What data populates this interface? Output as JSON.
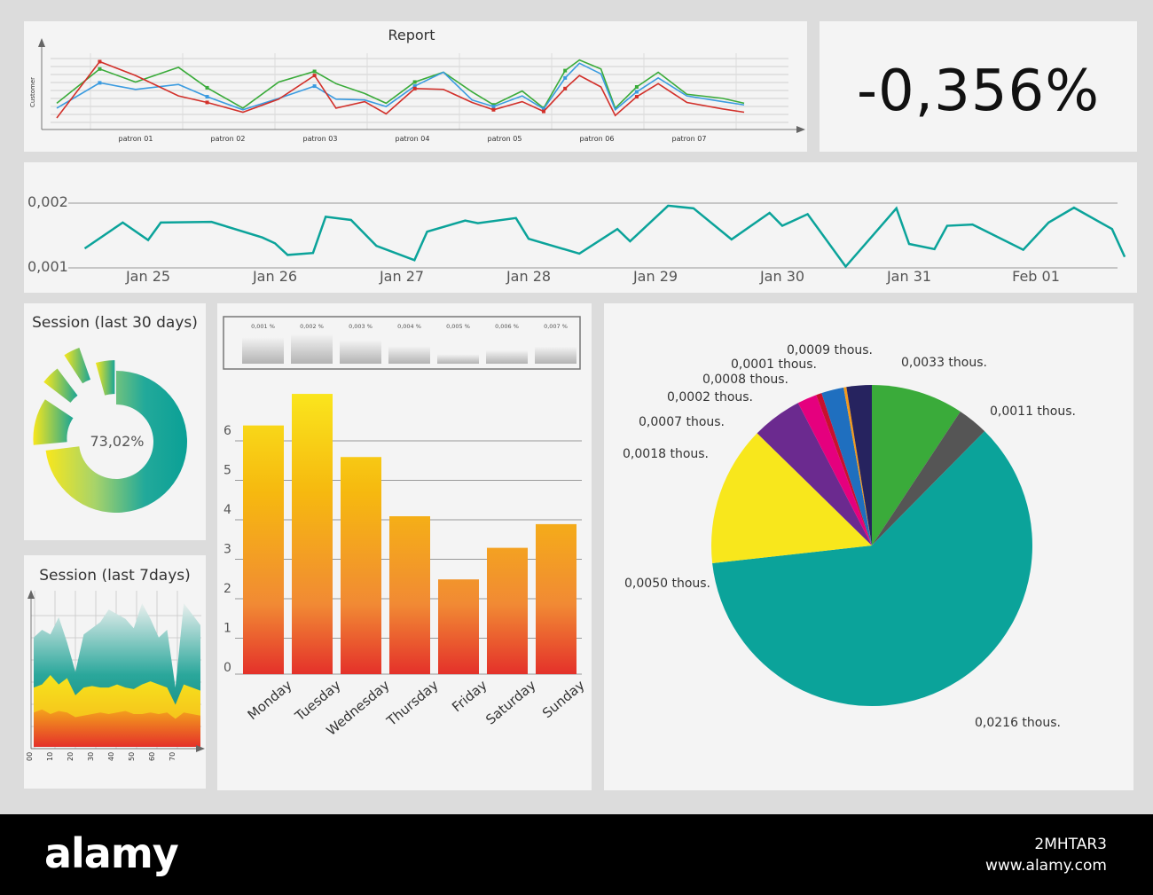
{
  "report": {
    "title": "Report",
    "ylabel": "Customer",
    "xlabels": [
      "patron 01",
      "patron 02",
      "patron 03",
      "patron 04",
      "patron 05",
      "patron 06",
      "patron 07"
    ]
  },
  "kpi": {
    "value": "-0,356%"
  },
  "timeline": {
    "ytick_top": "0,002",
    "ytick_bottom": "0,001",
    "xlabels": [
      "Jan 25",
      "Jan 26",
      "Jan 27",
      "Jan 28",
      "Jan 29",
      "Jan 30",
      "Jan 31",
      "Feb 01"
    ]
  },
  "donut": {
    "title": "Session (last 30 days)",
    "center_label": "73,02%"
  },
  "area": {
    "title": "Session (last 7days)",
    "xticks": [
      "00",
      "10",
      "20",
      "30",
      "40",
      "50",
      "60",
      "70"
    ]
  },
  "mini_bars": {
    "labels": [
      "0,001 %",
      "0,002 %",
      "0,003 %",
      "0,004 %",
      "0,005 %",
      "0,006 %",
      "0,007 %"
    ]
  },
  "bar_yticks": [
    "0",
    "1",
    "2",
    "3",
    "4",
    "5",
    "6"
  ],
  "pie_labels": [
    "0,0033 thous.",
    "0,0011 thous.",
    "0,0216 thous.",
    "0,0050 thous.",
    "0,0018 thous.",
    "0,0007 thous.",
    "0,0002 thous.",
    "0,0008 thous.",
    "0,0001 thous.",
    "0,0009 thous."
  ],
  "watermark": {
    "brand": "alamy",
    "code": "2MHTAR3",
    "url": "www.alamy.com"
  },
  "colors": {
    "teal": "#0ba39a",
    "green": "#3aab3a",
    "blue": "#3a9be0",
    "red": "#d2302a",
    "yellow": "#f8e71c"
  },
  "chart_data": [
    {
      "type": "line",
      "title": "Report",
      "ylabel": "Customer",
      "categories": [
        "patron 01",
        "patron 02",
        "patron 03",
        "patron 04",
        "patron 05",
        "patron 06",
        "patron 07"
      ],
      "x": [
        0,
        0.6,
        1.1,
        1.7,
        2.1,
        2.6,
        3.1,
        3.6,
        3.9,
        4.3,
        4.6,
        5.0,
        5.4,
        5.8,
        6.1,
        6.5,
        6.8,
        7.1,
        7.3,
        7.6,
        7.8,
        8.1,
        8.4,
        8.8,
        9.3,
        9.6
      ],
      "series": [
        {
          "values": [
            3.0,
            7.2,
            5.6,
            7.4,
            4.9,
            2.4,
            5.6,
            6.9,
            5.4,
            4.2,
            3.0,
            5.6,
            6.8,
            4.4,
            2.8,
            4.5,
            2.4,
            7.0,
            8.3,
            7.2,
            2.4,
            5.0,
            6.8,
            4.1,
            3.6,
            3.0
          ]
        },
        {
          "values": [
            2.4,
            5.5,
            4.7,
            5.3,
            3.8,
            2.2,
            3.6,
            5.1,
            3.5,
            3.4,
            2.6,
            5.1,
            6.8,
            3.4,
            2.6,
            3.9,
            2.3,
            6.1,
            7.9,
            6.6,
            2.2,
            4.4,
            6.1,
            3.9,
            3.2,
            2.8
          ]
        },
        {
          "values": [
            1.2,
            8.1,
            6.4,
            3.9,
            3.1,
            1.9,
            3.5,
            6.4,
            2.4,
            3.2,
            1.7,
            4.8,
            4.7,
            3.1,
            2.2,
            3.2,
            2.0,
            4.8,
            6.4,
            5.0,
            1.5,
            3.8,
            5.4,
            3.1,
            2.3,
            1.9
          ]
        }
      ],
      "ylim": [
        0,
        10
      ]
    },
    {
      "type": "line",
      "categories": [
        "Jan 25",
        "Jan 26",
        "Jan 27",
        "Jan 28",
        "Jan 29",
        "Jan 30",
        "Jan 31",
        "Feb 01"
      ],
      "x": [
        24.5,
        24.8,
        25.0,
        25.1,
        25.5,
        25.9,
        26.0,
        26.1,
        26.3,
        26.4,
        26.6,
        26.8,
        27.1,
        27.2,
        27.5,
        27.6,
        27.9,
        28.0,
        28.4,
        28.7,
        28.8,
        29.1,
        29.3,
        29.6,
        29.9,
        30.0,
        30.2,
        30.5,
        30.9,
        31.0,
        31.2,
        31.3,
        31.5,
        31.9,
        32.1,
        32.3,
        32.6,
        32.7
      ],
      "y": [
        1.3,
        1.7,
        1.43,
        1.7,
        1.71,
        1.47,
        1.38,
        1.2,
        1.23,
        1.79,
        1.74,
        1.34,
        1.12,
        1.56,
        1.73,
        1.69,
        1.77,
        1.45,
        1.22,
        1.6,
        1.41,
        1.96,
        1.92,
        1.44,
        1.85,
        1.65,
        1.83,
        1.02,
        1.92,
        1.37,
        1.29,
        1.65,
        1.67,
        1.28,
        1.7,
        1.93,
        1.6,
        1.17
      ],
      "yticks": [
        "0,002",
        "0,001"
      ]
    },
    {
      "type": "pie",
      "title": "Session (last 30 days)",
      "center_label": "73,02%",
      "values": [
        73.02,
        26.98
      ]
    },
    {
      "type": "area",
      "title": "Session (last 7days)",
      "xticks": [
        "00",
        "10",
        "20",
        "30",
        "40",
        "50",
        "60",
        "70"
      ],
      "x": [
        0,
        4,
        8,
        12,
        16,
        20,
        24,
        28,
        32,
        36,
        40,
        44,
        48,
        52,
        56,
        60,
        64,
        68,
        72,
        76,
        80
      ],
      "series": [
        {
          "name": "teal",
          "values": [
            70,
            75,
            72,
            83,
            67,
            48,
            72,
            76,
            80,
            88,
            85,
            82,
            76,
            92,
            82,
            70,
            75,
            38,
            92,
            85,
            78
          ]
        },
        {
          "name": "yellow",
          "values": [
            38,
            40,
            46,
            40,
            44,
            33,
            38,
            39,
            38,
            38,
            40,
            38,
            37,
            40,
            42,
            40,
            38,
            27,
            40,
            38,
            36
          ]
        },
        {
          "name": "red",
          "values": [
            22,
            24,
            21,
            23,
            22,
            19,
            20,
            21,
            22,
            21,
            22,
            23,
            21,
            21,
            22,
            21,
            22,
            18,
            22,
            21,
            20
          ]
        }
      ],
      "ylim": [
        0,
        100
      ]
    },
    {
      "type": "bar",
      "categories": [
        "0,001 %",
        "0,002 %",
        "0,003 %",
        "0,004 %",
        "0,005 %",
        "0,006 %",
        "0,007 %"
      ],
      "values": [
        6.5,
        7.3,
        5.8,
        4.3,
        2.3,
        3.3,
        4.2
      ],
      "ylim": [
        0,
        10
      ]
    },
    {
      "type": "bar",
      "categories": [
        "Monday",
        "Tuesday",
        "Wednesday",
        "Thursday",
        "Friday",
        "Saturday",
        "Sunday"
      ],
      "values": [
        6.3,
        7.1,
        5.5,
        4.0,
        2.4,
        3.2,
        3.8
      ],
      "ylim": [
        0,
        7
      ],
      "yticks": [
        "0",
        "1",
        "2",
        "3",
        "4",
        "5",
        "6"
      ]
    },
    {
      "type": "pie",
      "slices": [
        {
          "label": "0,0033 thous.",
          "value": 0.0033,
          "color": "#3aab3a"
        },
        {
          "label": "0,0011 thous.",
          "value": 0.0011,
          "color": "#555555"
        },
        {
          "label": "0,0216 thous.",
          "value": 0.0216,
          "color": "#0ba39a"
        },
        {
          "label": "0,0050 thous.",
          "value": 0.005,
          "color": "#f8e71c"
        },
        {
          "label": "0,0018 thous.",
          "value": 0.0018,
          "color": "#6b2a8f"
        },
        {
          "label": "0,0007 thous.",
          "value": 0.0007,
          "color": "#e5007e"
        },
        {
          "label": "0,0002 thous.",
          "value": 0.0002,
          "color": "#c8102e"
        },
        {
          "label": "0,0008 thous.",
          "value": 0.0008,
          "color": "#1f6fbf"
        },
        {
          "label": "0,0001 thous.",
          "value": 0.0001,
          "color": "#f39a1b"
        },
        {
          "label": "0,0009 thous.",
          "value": 0.0009,
          "color": "#26235f"
        }
      ]
    }
  ]
}
